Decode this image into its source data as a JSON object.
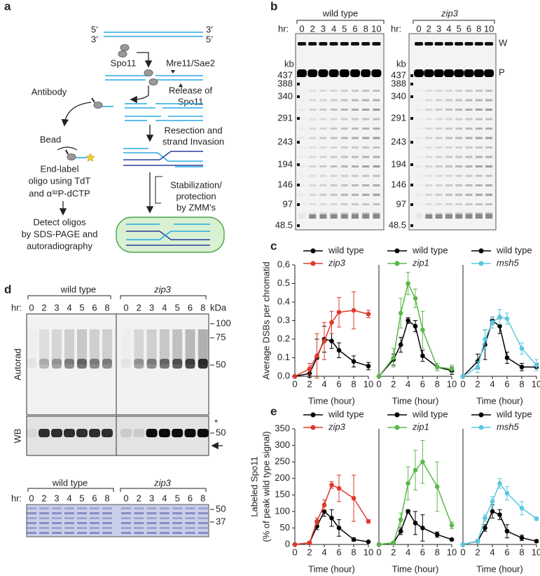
{
  "panel_labels": [
    "a",
    "b",
    "c",
    "d",
    "e"
  ],
  "diagram": {
    "ends": [
      "5′",
      "3′",
      "3′",
      "5′"
    ],
    "spo11": "Spo11",
    "nuclease": "Mre11/Sae2",
    "release": [
      "Release of",
      "Spo11"
    ],
    "antibody": "Antibody",
    "bead": "Bead",
    "resection": [
      "Resection and",
      "strand Invasion"
    ],
    "end_label": [
      "End-label",
      "oligo using TdT",
      "and α³²P-dCTP"
    ],
    "stabilization": [
      "Stabilization/",
      "protection",
      "by ZMM's"
    ],
    "detect": [
      "Detect oligos",
      "by SDS-PAGE and",
      "autoradiography"
    ]
  },
  "gel_b": {
    "groups": [
      "wild type",
      "zip3"
    ],
    "hr": "hr:",
    "lanes": [
      "0",
      "2",
      "3",
      "4",
      "5",
      "6",
      "8",
      "10"
    ],
    "size_unit": "kb",
    "markers": [
      "437",
      "388",
      "340",
      "291",
      "243",
      "194",
      "146",
      "97",
      "48.5"
    ],
    "bands": [
      "W",
      "P"
    ]
  },
  "blot_d": {
    "groups": [
      "wild type",
      "zip3"
    ],
    "hr": "hr:",
    "lanes": [
      "0",
      "2",
      "3",
      "4",
      "5",
      "6",
      "8"
    ],
    "unit": "kDa",
    "autorad_markers": [
      "100",
      "75",
      "50"
    ],
    "autorad_label": "Autorad",
    "wb_label": "WB",
    "wb_star": "*",
    "wb_marker": "50",
    "stain_markers": [
      "50",
      "37"
    ]
  },
  "chart_data": [
    {
      "type": "line",
      "ylabel": "Average DSBs per chromatid",
      "xlabel": "Time (hour)",
      "x": [
        0,
        2,
        3,
        4,
        5,
        6,
        8,
        10
      ],
      "xlim": [
        0,
        10
      ],
      "xticks": [
        0,
        2,
        4,
        6,
        8,
        10
      ],
      "ylim": [
        0,
        0.6
      ],
      "yticks": [
        {
          "value": 0,
          "label": "0.0"
        },
        0.1,
        0.2,
        0.3,
        0.4,
        0.5,
        0.6
      ],
      "series": [
        {
          "name": "wild type",
          "color": "#000000",
          "values": [
            0,
            0.015,
            0.1,
            0.2,
            0.19,
            0.14,
            0.08,
            0.055
          ],
          "errors": [
            0,
            0.02,
            0.1,
            0.07,
            0.04,
            0.04,
            0.03,
            0.02
          ]
        },
        {
          "name": "zip3",
          "color": "#e0392b",
          "values": [
            0,
            0.04,
            0.11,
            0.19,
            0.29,
            0.345,
            0.355,
            0.335
          ],
          "errors": [
            0,
            0.03,
            0.12,
            0.1,
            0.06,
            0.08,
            0.1,
            0.02
          ]
        }
      ]
    },
    {
      "type": "line",
      "xlabel": "Time (hour)",
      "x": [
        0,
        2,
        3,
        4,
        5,
        6,
        8,
        10
      ],
      "xlim": [
        0,
        10
      ],
      "xticks": [
        0,
        2,
        4,
        6,
        8,
        10
      ],
      "ylim": [
        0,
        0.6
      ],
      "series": [
        {
          "name": "wild type",
          "color": "#000000",
          "values": [
            0,
            0.09,
            0.17,
            0.3,
            0.27,
            0.11,
            0.05,
            0.03
          ],
          "errors": [
            0,
            0.03,
            0.04,
            0.015,
            0.03,
            0.03,
            0.02,
            0.02
          ]
        },
        {
          "name": "zip1",
          "color": "#5cb84a",
          "values": [
            0,
            0.1,
            0.34,
            0.5,
            0.42,
            0.25,
            0.05,
            0.04
          ],
          "errors": [
            0,
            0.05,
            0.08,
            0.06,
            0.05,
            0.1,
            0.02,
            0.02
          ]
        }
      ]
    },
    {
      "type": "line",
      "xlabel": "Time (hour)",
      "x": [
        0,
        2,
        3,
        4,
        5,
        6,
        8,
        10
      ],
      "xlim": [
        0,
        10
      ],
      "xticks": [
        0,
        2,
        4,
        6,
        8,
        10
      ],
      "ylim": [
        0,
        0.6
      ],
      "series": [
        {
          "name": "wild type",
          "color": "#000000",
          "values": [
            0,
            0.08,
            0.17,
            0.3,
            0.27,
            0.1,
            0.05,
            0.05
          ],
          "errors": [
            0,
            0.04,
            0.08,
            0.02,
            0.04,
            0.03,
            0.02,
            0.02
          ]
        },
        {
          "name": "msh5",
          "color": "#5bc8e0",
          "values": [
            0,
            0.05,
            0.2,
            0.29,
            0.32,
            0.31,
            0.15,
            0.06
          ],
          "errors": [
            0,
            0.03,
            0.05,
            0.03,
            0.04,
            0.03,
            0.03,
            0.03
          ]
        }
      ]
    },
    {
      "type": "line",
      "ylabel": [
        "Labeled Spo11",
        "(% of peak wild type signal)"
      ],
      "xlabel": "Time (hour)",
      "x": [
        0,
        2,
        3,
        4,
        5,
        6,
        8,
        10
      ],
      "xlim": [
        0,
        10
      ],
      "xticks": [
        0,
        2,
        4,
        6,
        8,
        10
      ],
      "ylim": [
        0,
        350
      ],
      "yticks": [
        0,
        50,
        100,
        150,
        200,
        250,
        300,
        350
      ],
      "series": [
        {
          "name": "wild type",
          "color": "#000000",
          "values": [
            0,
            5,
            55,
            100,
            80,
            50,
            15,
            8
          ],
          "errors": [
            0,
            3,
            10,
            15,
            25,
            25,
            5,
            3
          ]
        },
        {
          "name": "zip3",
          "color": "#e0392b",
          "values": [
            0,
            5,
            70,
            120,
            180,
            170,
            140,
            70
          ],
          "errors": [
            0,
            3,
            10,
            15,
            10,
            40,
            70,
            5
          ]
        }
      ]
    },
    {
      "type": "line",
      "xlabel": "Time (hour)",
      "x": [
        0,
        2,
        3,
        4,
        5,
        6,
        8,
        10
      ],
      "xlim": [
        0,
        10
      ],
      "xticks": [
        0,
        2,
        4,
        6,
        8,
        10
      ],
      "ylim": [
        0,
        350
      ],
      "series": [
        {
          "name": "wild type",
          "color": "#000000",
          "values": [
            0,
            5,
            40,
            100,
            65,
            50,
            30,
            15
          ],
          "errors": [
            0,
            3,
            10,
            5,
            35,
            40,
            8,
            3
          ]
        },
        {
          "name": "zip1",
          "color": "#5cb84a",
          "values": [
            0,
            5,
            75,
            185,
            225,
            250,
            175,
            58
          ],
          "errors": [
            0,
            3,
            20,
            50,
            60,
            65,
            75,
            10
          ]
        }
      ]
    },
    {
      "type": "line",
      "xlabel": "Time (hour)",
      "x": [
        0,
        2,
        3,
        4,
        5,
        6,
        8,
        10
      ],
      "xlim": [
        0,
        10
      ],
      "xticks": [
        0,
        2,
        4,
        6,
        8,
        10
      ],
      "ylim": [
        0,
        350
      ],
      "series": [
        {
          "name": "wild type",
          "color": "#000000",
          "values": [
            0,
            10,
            50,
            100,
            90,
            40,
            20,
            10
          ],
          "errors": [
            0,
            5,
            10,
            20,
            15,
            20,
            8,
            3
          ]
        },
        {
          "name": "msh5",
          "color": "#5bc8e0",
          "values": [
            0,
            10,
            80,
            130,
            185,
            155,
            110,
            78
          ],
          "errors": [
            0,
            5,
            10,
            15,
            15,
            20,
            20,
            5
          ]
        }
      ]
    }
  ]
}
